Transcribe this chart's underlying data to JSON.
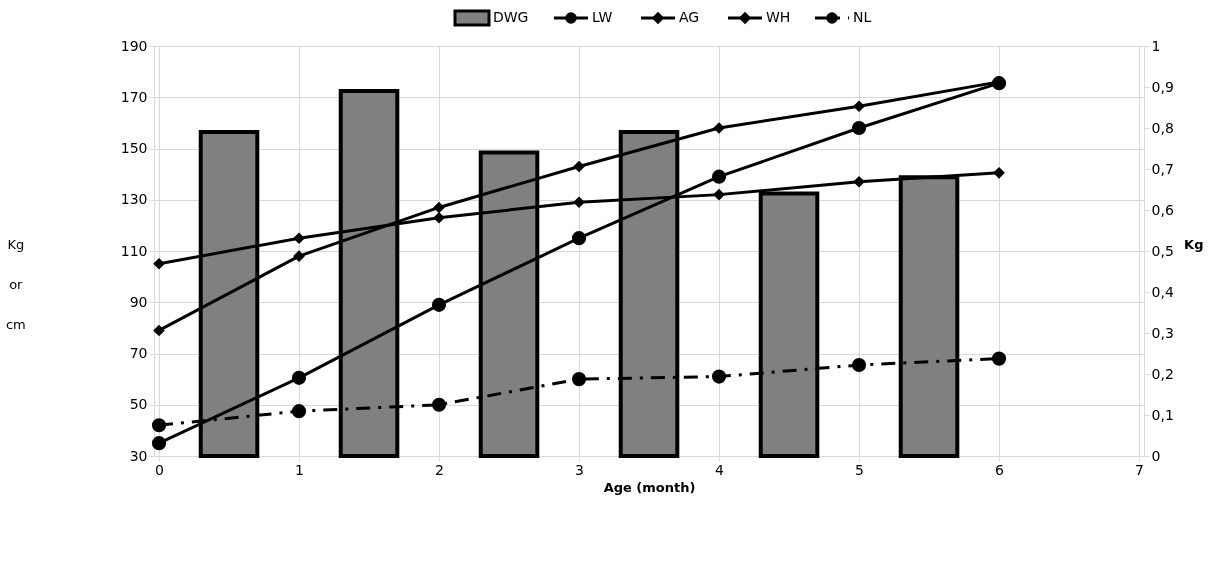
{
  "chart_data": {
    "type": "line",
    "xlabel": "Age (month)",
    "ylabel": "Kg or cm",
    "y2label": "Kg",
    "x": [
      0,
      1,
      2,
      3,
      4,
      5,
      6
    ],
    "xlim": [
      0,
      7
    ],
    "xticks": [
      0,
      1,
      2,
      3,
      4,
      5,
      6,
      7
    ],
    "ylim": [
      30,
      190
    ],
    "yticks": [
      30,
      50,
      70,
      90,
      110,
      130,
      150,
      170,
      190
    ],
    "y2lim": [
      0,
      1
    ],
    "y2ticks": [
      0,
      {
        "value": 0.1,
        "label": "0,1"
      },
      {
        "value": 0.2,
        "label": "0,2"
      },
      {
        "value": 0.3,
        "label": "0,3"
      },
      {
        "value": 0.4,
        "label": "0,4"
      },
      {
        "value": 0.5,
        "label": "0,5"
      },
      {
        "value": 0.6,
        "label": "0,6"
      },
      {
        "value": 0.7,
        "label": "0,7"
      },
      {
        "value": 0.8,
        "label": "0,8"
      },
      {
        "value": 0.9,
        "label": "0,9"
      },
      1
    ],
    "grid": true,
    "legend": "top",
    "series": [
      {
        "name": "DWG",
        "type": "bar",
        "axis": "y2",
        "color": "#808080",
        "x": [
          0.5,
          1.5,
          2.5,
          3.5,
          4.5,
          5.5
        ],
        "values": [
          0.79,
          0.89,
          0.74,
          0.79,
          0.64,
          0.68
        ]
      },
      {
        "name": "LW",
        "color": "#000000",
        "marker": "circle",
        "line_style": "solid",
        "values": [
          35,
          60.5,
          89,
          115,
          139,
          158,
          175.5
        ]
      },
      {
        "name": "AG",
        "color": "#000000",
        "marker": "diamond",
        "line_style": "solid",
        "values": [
          79,
          108,
          127,
          143,
          158,
          166.5,
          176
        ]
      },
      {
        "name": "WH",
        "color": "#000000",
        "marker": "diamond",
        "line_style": "solid",
        "values": [
          105,
          115,
          123,
          129,
          132,
          137,
          140.5
        ]
      },
      {
        "name": "NL",
        "color": "#000000",
        "marker": "circle",
        "line_style": "dashed",
        "values": [
          42,
          47.5,
          50,
          60,
          61,
          65.5,
          68
        ]
      }
    ]
  }
}
